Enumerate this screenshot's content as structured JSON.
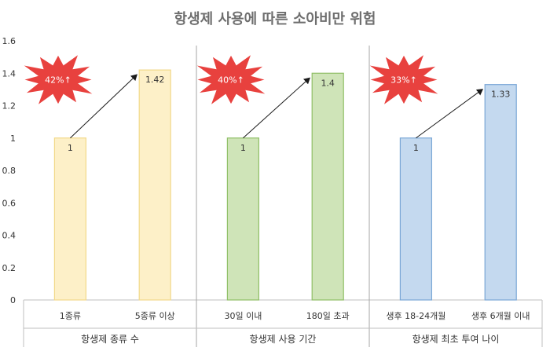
{
  "chart_data": {
    "type": "bar",
    "title": "항생제 사용에 따른 소아비만 위험",
    "ylim": [
      0,
      1.6
    ],
    "yticks": [
      "0",
      "0.2",
      "0.4",
      "0.6",
      "0.8",
      "1",
      "1.2",
      "1.4",
      "1.6"
    ],
    "grid": false,
    "groups": [
      {
        "label": "항생제 종류 수",
        "categories": [
          "1종류",
          "5종류 이상"
        ],
        "values": [
          1,
          1.42
        ],
        "value_labels": [
          "1",
          "1.42"
        ],
        "color": "#fdf0c8",
        "border": "#f2d98a",
        "increase_label": "42%↑"
      },
      {
        "label": "항생제 사용 기간",
        "categories": [
          "30일 이내",
          "180일 초과"
        ],
        "values": [
          1,
          1.4
        ],
        "value_labels": [
          "1",
          "1.4"
        ],
        "color": "#cfe4b8",
        "border": "#8fbf66",
        "increase_label": "40%↑"
      },
      {
        "label": "항생제 최초 투여 나이",
        "categories": [
          "생후 18-24개월",
          "생후 6개월 이내"
        ],
        "values": [
          1,
          1.33
        ],
        "value_labels": [
          "1",
          "1.33"
        ],
        "color": "#c4d9ef",
        "border": "#7aa7d6",
        "increase_label": "33%↑"
      }
    ],
    "annotation_color": "#e8413e"
  }
}
